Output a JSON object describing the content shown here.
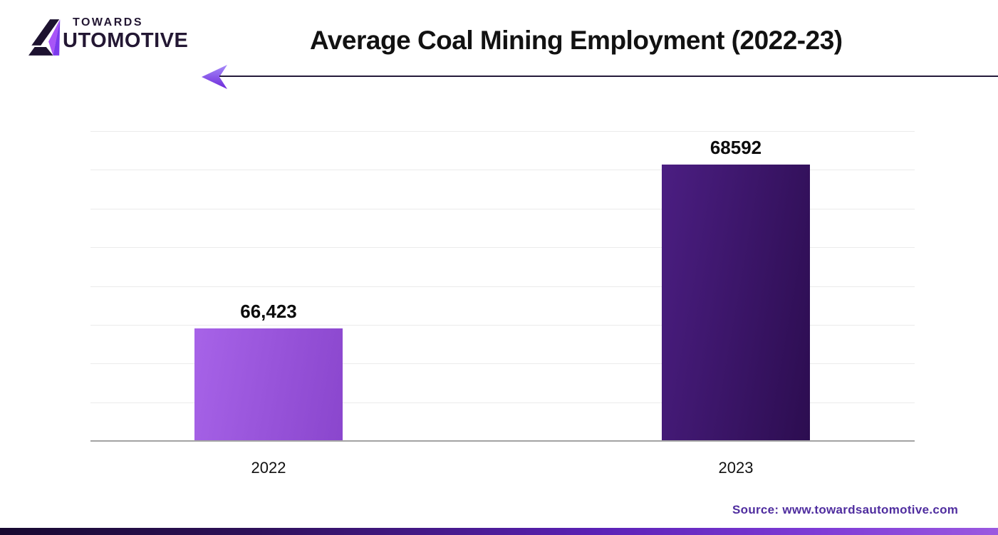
{
  "logo": {
    "brand_top": "TOWARDS",
    "brand_bottom_rest": "UTOMOTIVE",
    "mark_colors": {
      "black": "#1d1230",
      "purple_light": "#a855f7",
      "purple_dark": "#7c3aed"
    }
  },
  "header": {
    "title": "Average Coal Mining Employment (2022-23)",
    "rule_color": "#241b3a",
    "arrow_gradient": [
      "#a78bfa",
      "#6d28d9"
    ]
  },
  "chart_data": {
    "type": "bar",
    "title": "Average Coal Mining Employment (2022-23)",
    "categories": [
      "2022",
      "2023"
    ],
    "values": [
      66423,
      68592
    ],
    "value_labels": [
      "66,423",
      "68592"
    ],
    "xlabel": "",
    "ylabel": "",
    "ylim": [
      64950,
      69040
    ],
    "gridline_count": 8,
    "grid": "horizontal-only",
    "legend": "none",
    "bar_gradients": {
      "2022": [
        "#a763e8",
        "#8a46cd"
      ],
      "2023": [
        "#4b1e82",
        "#2c0d50"
      ]
    }
  },
  "footer": {
    "source_text": "Source: www.towardsautomotive.com",
    "source_color": "#4f2d9f",
    "strip_gradient": [
      "#170930",
      "#5b21b6",
      "#9b59e0"
    ]
  }
}
